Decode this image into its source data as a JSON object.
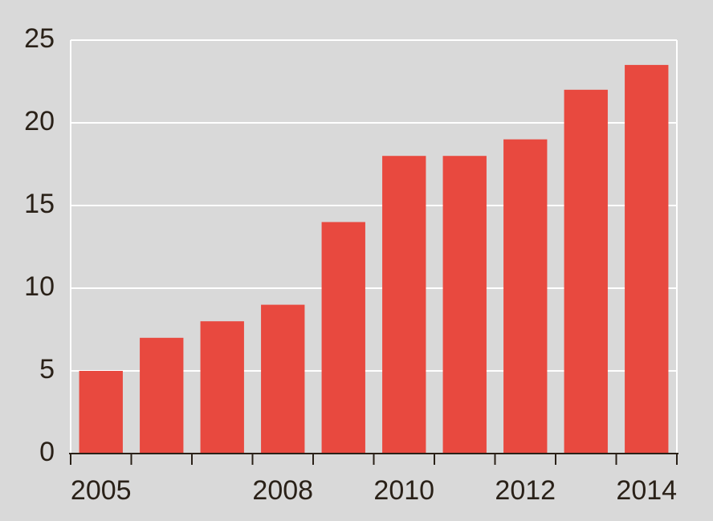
{
  "chart_data": {
    "type": "bar",
    "categories": [
      "2005",
      null,
      null,
      "2008",
      null,
      "2010",
      null,
      "2012",
      null,
      "2014"
    ],
    "values": [
      5,
      7,
      8,
      9,
      14,
      18,
      18,
      19,
      22,
      23.5
    ],
    "color": "#e8493f",
    "ylim": [
      0,
      25
    ],
    "yticks": [
      0,
      5,
      10,
      15,
      20,
      25
    ],
    "grid": true
  }
}
